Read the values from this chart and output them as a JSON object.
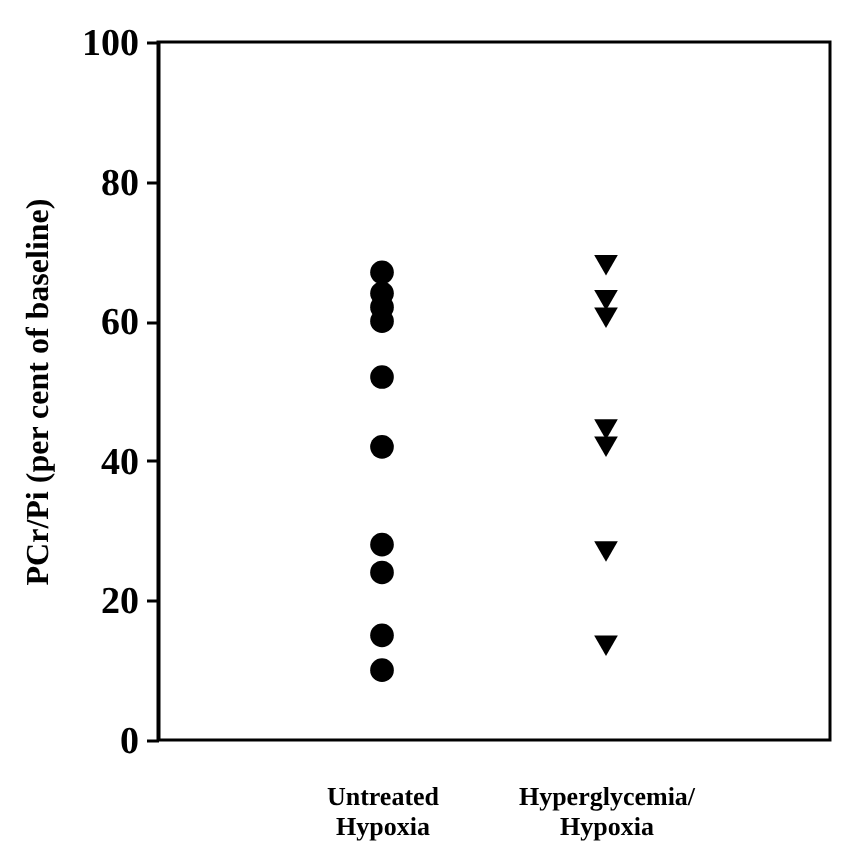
{
  "chart_data": {
    "type": "scatter",
    "ylabel": "PCr/Pi (per cent of baseline)",
    "categories": [
      "Untreated Hypoxia",
      "Hyperglycemia/ Hypoxia"
    ],
    "ylim": [
      0,
      100
    ],
    "yticks": [
      0,
      20,
      40,
      60,
      80,
      100
    ],
    "grid": false,
    "series": [
      {
        "color": "#000000",
        "marker": "circle",
        "x": [
          "Untreated Hypoxia",
          "Untreated Hypoxia",
          "Untreated Hypoxia",
          "Untreated Hypoxia",
          "Untreated Hypoxia",
          "Untreated Hypoxia",
          "Untreated Hypoxia",
          "Untreated Hypoxia",
          "Untreated Hypoxia",
          "Untreated Hypoxia"
        ],
        "values": [
          67,
          64,
          62,
          60,
          52,
          42,
          28,
          24,
          15,
          10
        ]
      },
      {
        "color": "#000000",
        "marker": "triangle",
        "x": [
          "Hyperglycemia/ Hypoxia",
          "Hyperglycemia/ Hypoxia",
          "Hyperglycemia/ Hypoxia",
          "Hyperglycemia/ Hypoxia",
          "Hyperglycemia/ Hypoxia",
          "Hyperglycemia/ Hypoxia",
          "Hyperglycemia/ Hypoxia"
        ],
        "values": [
          68,
          63,
          60.5,
          44.5,
          42,
          27,
          13.5
        ]
      }
    ]
  }
}
